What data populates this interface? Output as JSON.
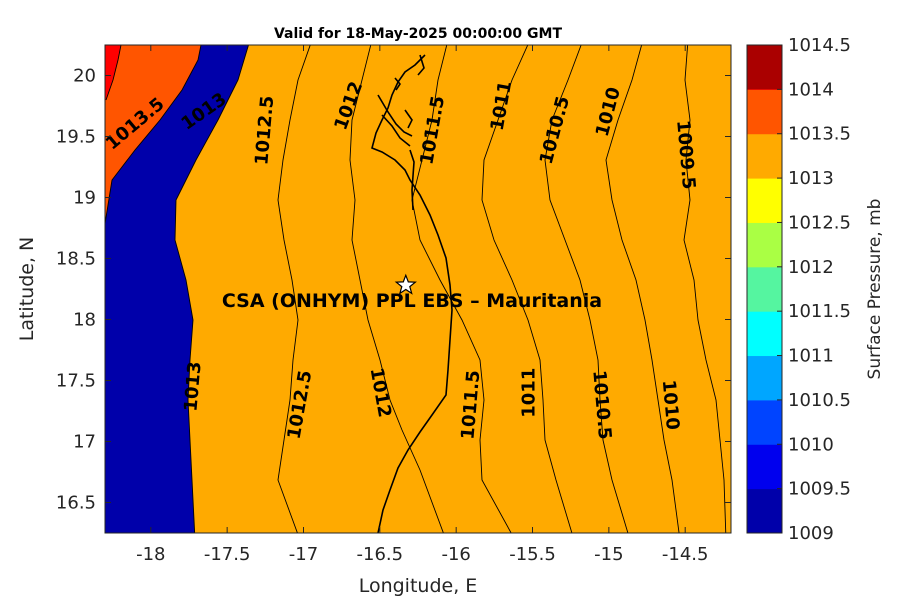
{
  "chart_data": {
    "type": "contour-map",
    "title": "Valid for 18-May-2025 00:00:00 GMT",
    "xlabel": "Longitude, E",
    "ylabel": "Latitude, N",
    "xlim": [
      -18.3,
      -14.2
    ],
    "ylim": [
      16.25,
      20.25
    ],
    "xticks": [
      "-18",
      "-17.5",
      "-17",
      "-16.5",
      "-16",
      "-15.5",
      "-15",
      "-14.5"
    ],
    "xtick_values": [
      -18,
      -17.5,
      -17,
      -16.5,
      -16,
      -15.5,
      -15,
      -14.5
    ],
    "yticks": [
      "16.5",
      "17",
      "17.5",
      "18",
      "18.5",
      "19",
      "19.5",
      "20"
    ],
    "ytick_values": [
      16.5,
      17,
      17.5,
      18,
      18.5,
      19,
      19.5,
      20
    ],
    "colorbar": {
      "label": "Surface Pressure, mb",
      "levels": [
        "1009",
        "1009.5",
        "1010",
        "1010.5",
        "1011",
        "1011.5",
        "1012",
        "1012.5",
        "1013",
        "1013.5",
        "1014",
        "1014.5"
      ],
      "colors": [
        "#0000aa",
        "#0000ee",
        "#0044ff",
        "#00a6ff",
        "#00ffff",
        "#55f5a0",
        "#aaff44",
        "#ffff00",
        "#ffaa00",
        "#ff5500",
        "#ff0000",
        "#aa0000"
      ]
    },
    "contour_labels": [
      {
        "text": "1013.5",
        "lon": -18.1,
        "lat": 19.6
      },
      {
        "text": "1013",
        "lon": -17.65,
        "lat": 19.7
      },
      {
        "text": "1012.5",
        "lon": -17.25,
        "lat": 19.55
      },
      {
        "text": "1012",
        "lon": -16.7,
        "lat": 19.75
      },
      {
        "text": "1011.5",
        "lon": -16.15,
        "lat": 19.55
      },
      {
        "text": "1011",
        "lon": -15.7,
        "lat": 19.75
      },
      {
        "text": "1010.5",
        "lon": -15.35,
        "lat": 19.55
      },
      {
        "text": "1010",
        "lon": -15.0,
        "lat": 19.7
      },
      {
        "text": "1009.5",
        "lon": -14.5,
        "lat": 19.35
      },
      {
        "text": "1013",
        "lon": -17.72,
        "lat": 17.45
      },
      {
        "text": "1012.5",
        "lon": -17.02,
        "lat": 17.3
      },
      {
        "text": "1012",
        "lon": -16.5,
        "lat": 17.4
      },
      {
        "text": "1011.5",
        "lon": -15.9,
        "lat": 17.3
      },
      {
        "text": "1011",
        "lon": -15.52,
        "lat": 17.4
      },
      {
        "text": "1010.5",
        "lon": -15.05,
        "lat": 17.3
      },
      {
        "text": "1010",
        "lon": -14.6,
        "lat": 17.3
      }
    ],
    "site": {
      "name": "CSA (ONHYM) PPL EBS  – Mauritania",
      "lon": -16.33,
      "lat": 18.28
    }
  }
}
